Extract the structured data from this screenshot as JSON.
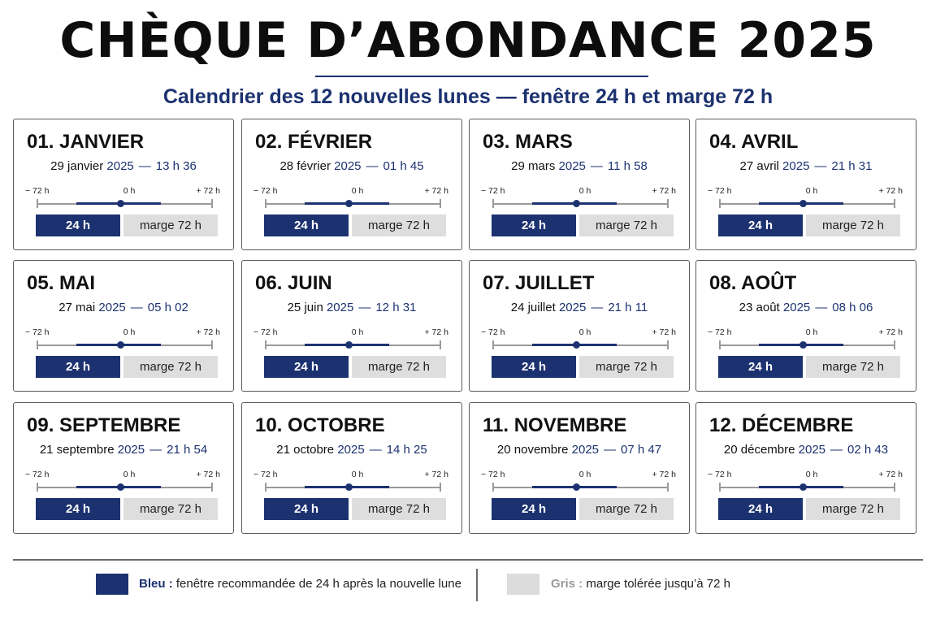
{
  "title": "CHÈQUE D’ABONDANCE 2025",
  "subtitle": "Calendrier des 12 nouvelles lunes — fenêtre 24 h et marge 72 h",
  "colors": {
    "blue": "#1c3270",
    "grey": "#dedede"
  },
  "axis_labels": {
    "left": "− 72 h",
    "mid": "0 h",
    "right": "+ 72 h"
  },
  "bar_labels": {
    "window": "24 h",
    "margin": "marge 72 h"
  },
  "months": [
    {
      "title": "01. JANVIER",
      "day": "29 janvier",
      "year": "2025",
      "time": "13 h 36"
    },
    {
      "title": "02. FÉVRIER",
      "day": "28 février",
      "year": "2025",
      "time": "01 h 45"
    },
    {
      "title": "03. MARS",
      "day": "29 mars",
      "year": "2025",
      "time": "11 h 58"
    },
    {
      "title": "04. AVRIL",
      "day": "27 avril",
      "year": "2025",
      "time": "21 h 31"
    },
    {
      "title": "05. MAI",
      "day": "27 mai",
      "year": "2025",
      "time": "05 h 02"
    },
    {
      "title": "06. JUIN",
      "day": "25 juin",
      "year": "2025",
      "time": "12 h 31"
    },
    {
      "title": "07. JUILLET",
      "day": "24 juillet",
      "year": "2025",
      "time": "21 h 11"
    },
    {
      "title": "08. AOÛT",
      "day": "23 août",
      "year": "2025",
      "time": "08 h 06"
    },
    {
      "title": "09. SEPTEMBRE",
      "day": "21 septembre",
      "year": "2025",
      "time": "21 h 54"
    },
    {
      "title": "10. OCTOBRE",
      "day": "21 octobre",
      "year": "2025",
      "time": "14 h 25"
    },
    {
      "title": "11. NOVEMBRE",
      "day": "20 novembre",
      "year": "2025",
      "time": "07 h 47"
    },
    {
      "title": "12. DÉCEMBRE",
      "day": "20 décembre",
      "year": "2025",
      "time": "02 h 43"
    }
  ],
  "legend": {
    "blue_key": "Bleu :",
    "blue_text": "fenêtre recommandée de 24 h après la nouvelle lune",
    "grey_key": "Gris :",
    "grey_text": "marge tolérée jusqu’à 72 h"
  }
}
